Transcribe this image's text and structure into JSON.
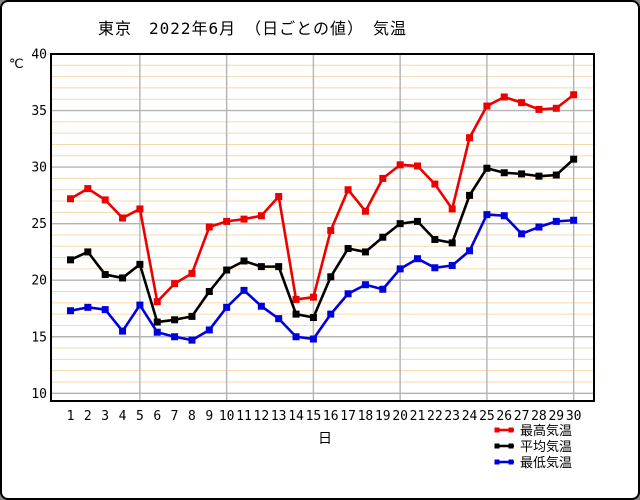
{
  "title": "東京　2022年6月　（日ごとの値）　気温",
  "y_axis": {
    "unit": "℃",
    "ticks": [
      40,
      35,
      30,
      25,
      20,
      15,
      10
    ]
  },
  "x_axis": {
    "label": "日"
  },
  "colors": {
    "max_series": "#ee0000",
    "avg_series": "#000000",
    "min_series": "#0000dd",
    "minor_grid": "#f6d8ab",
    "major_grid": "#b3b3b3",
    "frame": "#000000"
  },
  "chart_data": {
    "type": "line",
    "title": "東京　2022年6月　（日ごとの値）　気温",
    "xlabel": "日",
    "ylabel": "℃",
    "ylim": [
      10,
      40
    ],
    "grid": "on",
    "legend_position": "bottom-right",
    "categories": [
      1,
      2,
      3,
      4,
      5,
      6,
      7,
      8,
      9,
      10,
      11,
      12,
      13,
      14,
      15,
      16,
      17,
      18,
      19,
      20,
      21,
      22,
      23,
      24,
      25,
      26,
      27,
      28,
      29,
      30
    ],
    "series": [
      {
        "name": "最高気温",
        "color": "#ee0000",
        "values": [
          27.2,
          28.1,
          27.1,
          25.5,
          26.3,
          18.1,
          19.7,
          20.6,
          24.7,
          25.2,
          25.4,
          25.7,
          27.4,
          18.3,
          18.5,
          24.4,
          28.0,
          26.1,
          29.0,
          30.2,
          30.1,
          28.5,
          26.3,
          32.6,
          35.4,
          36.2,
          35.7,
          35.1,
          35.2,
          36.4
        ]
      },
      {
        "name": "平均気温",
        "color": "#000000",
        "values": [
          21.8,
          22.5,
          20.5,
          20.2,
          21.4,
          16.3,
          16.5,
          16.8,
          19.0,
          20.9,
          21.7,
          21.2,
          21.2,
          17.0,
          16.7,
          20.3,
          22.8,
          22.5,
          23.8,
          25.0,
          25.2,
          23.6,
          23.3,
          27.5,
          29.9,
          29.5,
          29.4,
          29.2,
          29.3,
          30.7
        ]
      },
      {
        "name": "最低気温",
        "color": "#0000dd",
        "values": [
          17.3,
          17.6,
          17.4,
          15.5,
          17.8,
          15.4,
          15.0,
          14.7,
          15.6,
          17.6,
          19.1,
          17.7,
          16.6,
          15.0,
          14.8,
          17.0,
          18.8,
          19.6,
          19.2,
          21.0,
          21.9,
          21.1,
          21.3,
          22.6,
          25.8,
          25.7,
          24.1,
          24.7,
          25.2,
          25.3
        ]
      }
    ]
  }
}
